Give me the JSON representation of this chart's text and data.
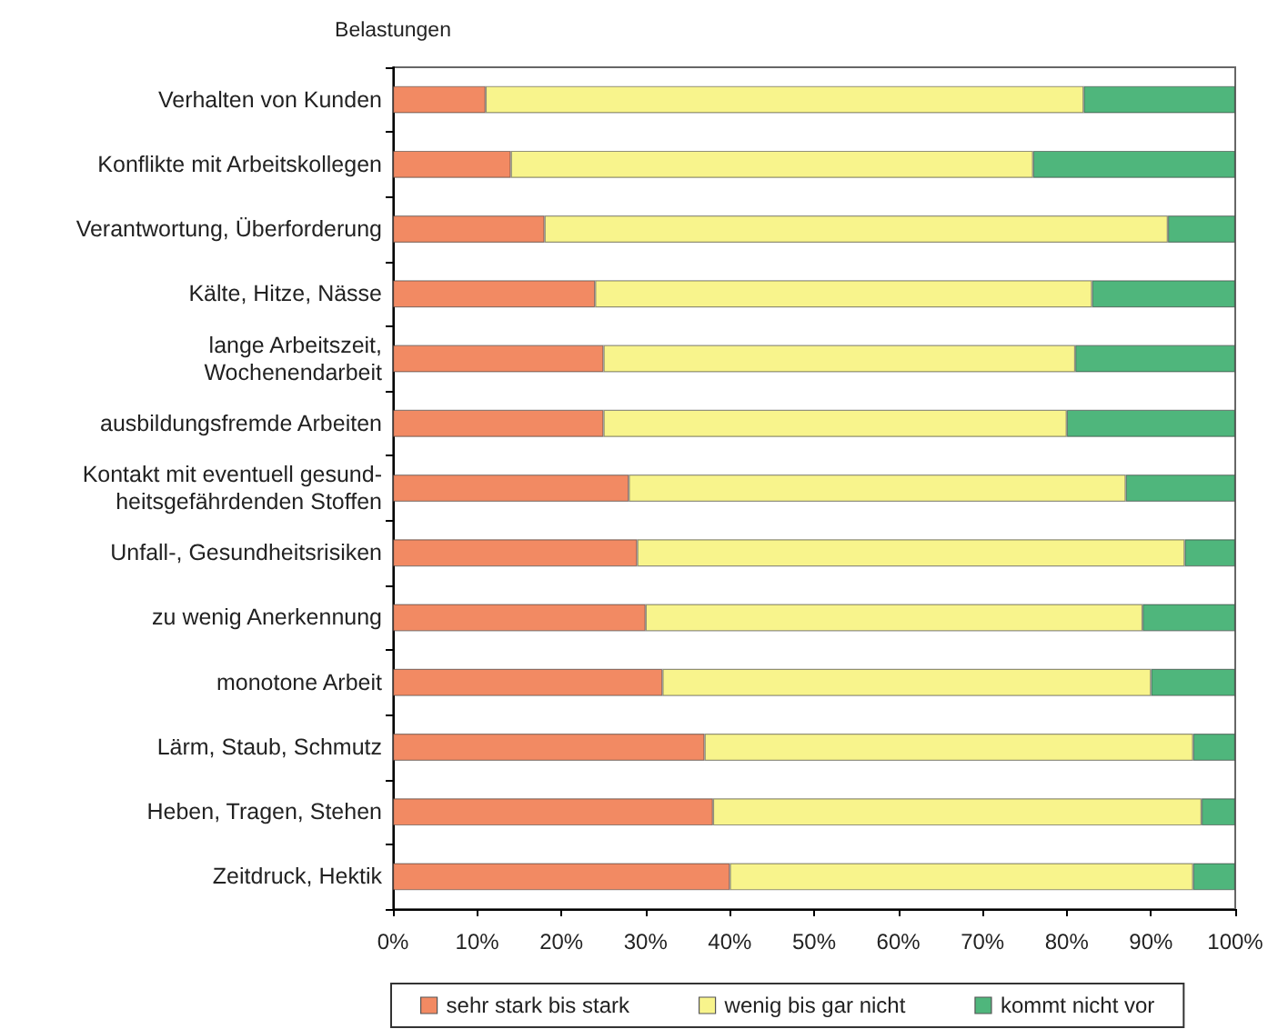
{
  "chart_data": {
    "type": "bar",
    "orientation": "horizontal",
    "stacked": true,
    "ylabel": "Belastungen",
    "categories": [
      "Verhalten von Kunden",
      "Konflikte mit Arbeitskollegen",
      "Verantwortung, Überforderung",
      "Kälte, Hitze, Nässe",
      "lange Arbeitszeit,\nWochenendarbeit",
      "ausbildungsfremde Arbeiten",
      "Kontakt mit eventuell gesund-\nheitsgefährdenden Stoffen",
      "Unfall-, Gesundheitsrisiken",
      "zu wenig Anerkennung",
      "monotone Arbeit",
      "Lärm, Staub, Schmutz",
      "Heben, Tragen, Stehen",
      "Zeitdruck, Hektik"
    ],
    "series": [
      {
        "name": "sehr stark bis stark",
        "color": "#f28a63",
        "values": [
          11,
          14,
          18,
          24,
          25,
          25,
          28,
          29,
          30,
          32,
          37,
          38,
          40
        ]
      },
      {
        "name": "wenig bis gar nicht",
        "color": "#f8f48c",
        "values": [
          71,
          62,
          74,
          59,
          56,
          55,
          59,
          65,
          59,
          58,
          58,
          58,
          55
        ]
      },
      {
        "name": "kommt nicht vor",
        "color": "#4fb67c",
        "values": [
          18,
          24,
          8,
          17,
          19,
          20,
          13,
          6,
          11,
          10,
          5,
          4,
          5
        ]
      }
    ],
    "xlim": [
      0,
      100
    ],
    "xticks": [
      {
        "value": 0,
        "label": "0%"
      },
      {
        "value": 10,
        "label": "10%"
      },
      {
        "value": 20,
        "label": "20%"
      },
      {
        "value": 30,
        "label": "30%"
      },
      {
        "value": 40,
        "label": "40%"
      },
      {
        "value": 50,
        "label": "50%"
      },
      {
        "value": 60,
        "label": "60%"
      },
      {
        "value": 70,
        "label": "70%"
      },
      {
        "value": 80,
        "label": "80%"
      },
      {
        "value": 90,
        "label": "90%"
      },
      {
        "value": 100,
        "label": "100%"
      }
    ],
    "grid": false,
    "legend": "bottom"
  }
}
